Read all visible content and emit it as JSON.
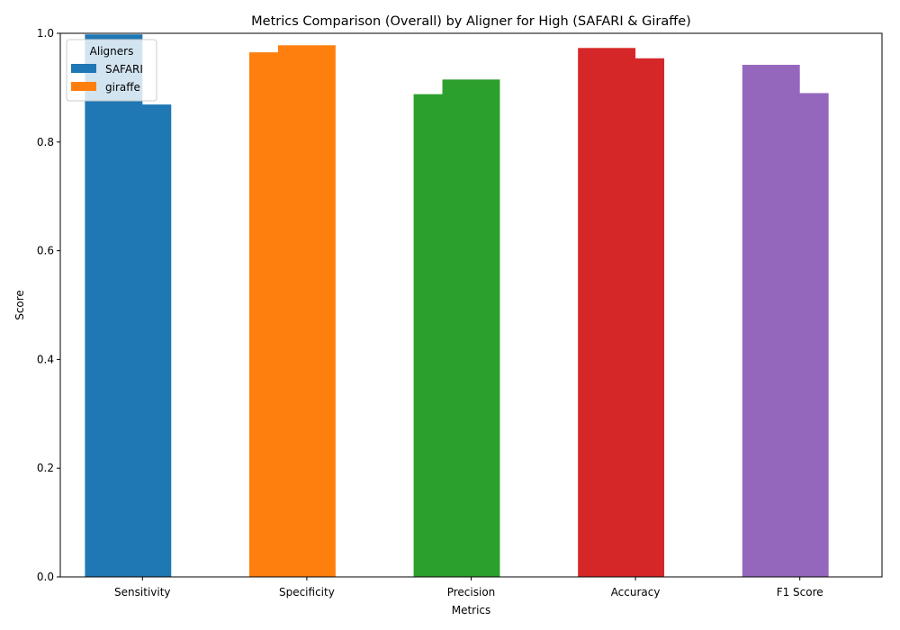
{
  "chart_data": {
    "type": "bar",
    "title": "Metrics Comparison (Overall) by Aligner for High (SAFARI & Giraffe)",
    "xlabel": "Metrics",
    "ylabel": "Score",
    "ylim": [
      0,
      1.0
    ],
    "yticks": [
      "0.0",
      "0.2",
      "0.4",
      "0.6",
      "0.8",
      "1.0"
    ],
    "categories": [
      "Sensitivity",
      "Specificity",
      "Precision",
      "Accuracy",
      "F1 Score"
    ],
    "category_colors": [
      "#1f77b4",
      "#ff7f0e",
      "#2ca02c",
      "#d62728",
      "#9467bd"
    ],
    "series": [
      {
        "name": "SAFARI",
        "values": [
          0.998,
          0.965,
          0.888,
          0.973,
          0.942
        ]
      },
      {
        "name": "giraffe",
        "values": [
          0.869,
          0.978,
          0.915,
          0.954,
          0.89
        ]
      }
    ],
    "legend": {
      "title": "Aligners",
      "placement": "top-left",
      "colors": [
        "#1f77b4",
        "#ff7f0e"
      ]
    },
    "grid": false
  }
}
